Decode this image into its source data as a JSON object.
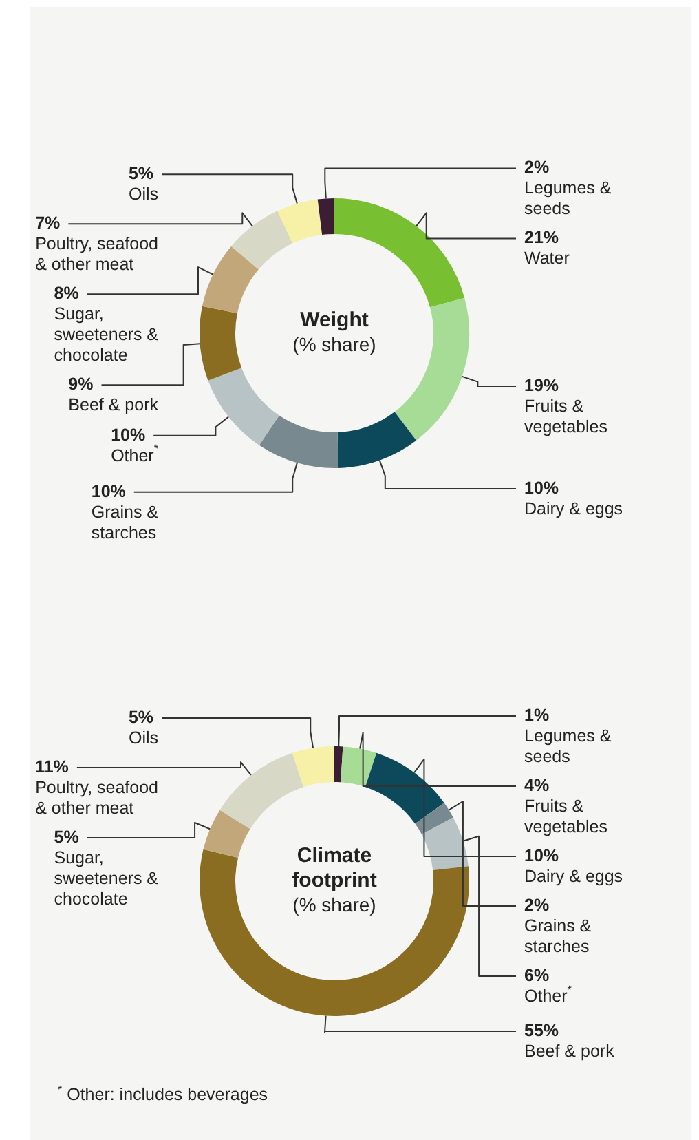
{
  "chart_data": [
    {
      "type": "donut",
      "title": "Weight",
      "subtitle": "(% share)",
      "categories": [
        "Water",
        "Fruits & vegetables",
        "Dairy & eggs",
        "Grains & starches",
        "Other$^{*}$",
        "Beef & pork",
        "Sugar, sweeteners & chocolate",
        "Poultry, seafood & other meat",
        "Oils",
        "Legumes & seeds"
      ],
      "values": [
        21,
        19,
        10,
        10,
        10,
        9,
        8,
        7,
        5,
        2
      ],
      "value_labels": [
        "21%",
        "19%",
        "10%",
        "10%",
        "10%",
        "9%",
        "8%",
        "7%",
        "5%",
        "2%"
      ],
      "colors": [
        "#79bf32",
        "#a6dc95",
        "#0c4a5b",
        "#78898f",
        "#b7c3c4",
        "#8b6d22",
        "#c1a77a",
        "#d7d8c6",
        "#f6f1a6",
        "#3c1d33"
      ]
    },
    {
      "type": "donut",
      "title": "Climate footprint",
      "subtitle": "(% share)",
      "categories": [
        "Legumes & seeds",
        "Fruits & vegetables",
        "Dairy & eggs",
        "Grains & starches",
        "Other$^{*}$",
        "Beef & pork",
        "Sugar, sweeteners & chocolate",
        "Poultry, seafood & other meat",
        "Oils"
      ],
      "values": [
        1,
        4,
        10,
        2,
        6,
        55,
        5,
        11,
        5
      ],
      "value_labels": [
        "1%",
        "4%",
        "10%",
        "2%",
        "6%",
        "55%",
        "5%",
        "11%",
        "5%"
      ],
      "colors": [
        "#3c1d33",
        "#a6dc95",
        "#0c4a5b",
        "#78898f",
        "#b7c3c4",
        "#8b6d22",
        "#c1a77a",
        "#d7d8c6",
        "#f6f1a6"
      ],
      "annotations": [
        "$^{*}$ Other: includes beverages"
      ]
    }
  ]
}
